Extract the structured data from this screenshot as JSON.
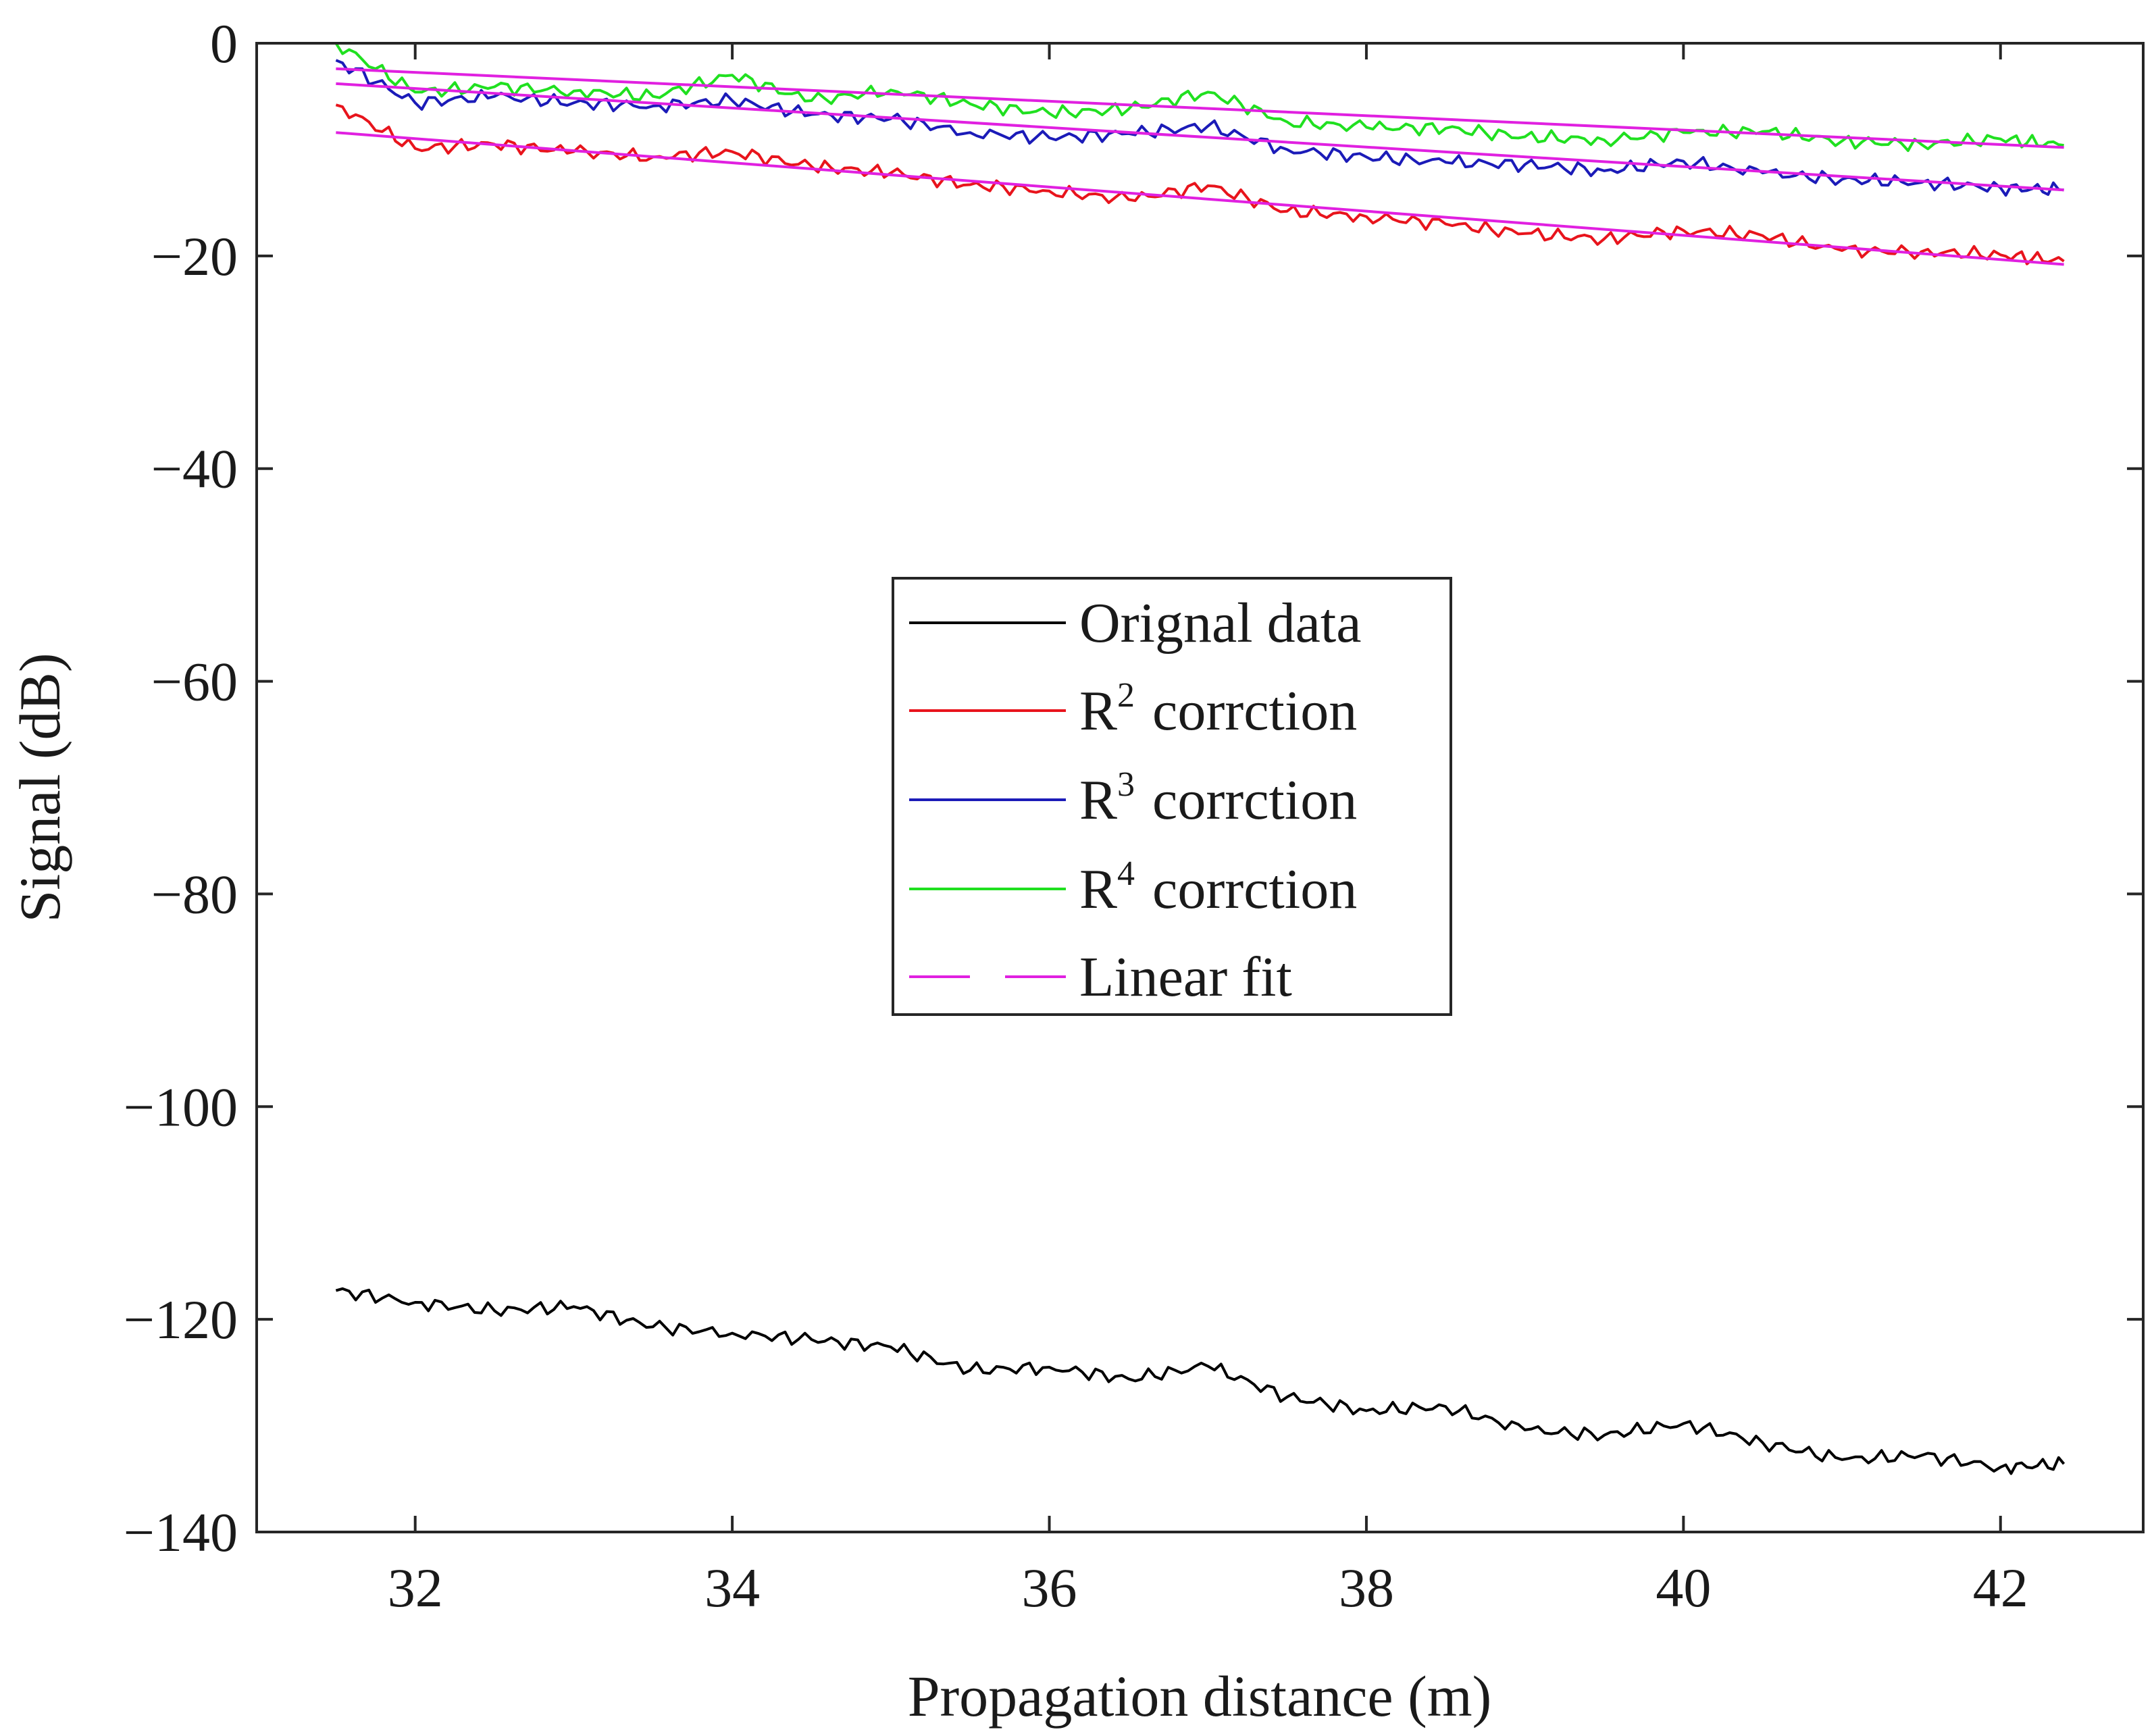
{
  "chart_data": {
    "type": "line",
    "title": "",
    "xlabel": "Propagation distance (m)",
    "ylabel": "Signal (dB)",
    "xlim": [
      31,
      42.9
    ],
    "ylim": [
      -140,
      0
    ],
    "xticks": [
      32,
      34,
      36,
      38,
      40,
      42
    ],
    "yticks": [
      0,
      -20,
      -40,
      -60,
      -80,
      -100,
      -120,
      -140
    ],
    "xtick_labels": [
      "32",
      "34",
      "36",
      "38",
      "40",
      "42"
    ],
    "ytick_labels": [
      "0",
      "−20",
      "−40",
      "−60",
      "−80",
      "−100",
      "−120",
      "−140"
    ],
    "grid": false,
    "legend_position": "center",
    "x": [
      31.5,
      32.0,
      32.5,
      33.0,
      33.5,
      34.0,
      34.5,
      35.0,
      35.5,
      36.0,
      36.5,
      37.0,
      37.5,
      38.0,
      38.5,
      39.0,
      39.5,
      40.0,
      40.5,
      41.0,
      41.5,
      42.0,
      42.4
    ],
    "series": [
      {
        "name": "Orignal data",
        "color": "#000000",
        "values": [
          -117.3,
          -118.4,
          -119.2,
          -118.8,
          -120.7,
          -121.3,
          -121.9,
          -122.6,
          -124.8,
          -124.5,
          -125.6,
          -124.4,
          -127.3,
          -128.6,
          -128.2,
          -130.4,
          -130.9,
          -129.8,
          -131.6,
          -133.2,
          -132.8,
          -133.9,
          -133.6
        ]
      },
      {
        "name": "R2 corrction",
        "label_base": "R",
        "label_sup": "2",
        "label_rest": "corrction",
        "color": "#e8141c",
        "values": [
          -5.8,
          -9.9,
          -9.5,
          -10.2,
          -10.7,
          -10.2,
          -11.6,
          -12.2,
          -13.3,
          -13.9,
          -14.7,
          -13.4,
          -15.8,
          -16.3,
          -17.0,
          -17.9,
          -18.4,
          -17.6,
          -18.1,
          -19.5,
          -19.6,
          -19.9,
          -20.5
        ]
      },
      {
        "name": "R3 corrction",
        "label_base": "R",
        "label_sup": "3",
        "label_rest": "corrction",
        "color": "#1b1bb8",
        "values": [
          -1.6,
          -5.6,
          -5.0,
          -5.6,
          -5.9,
          -5.4,
          -6.7,
          -7.1,
          -8.4,
          -8.9,
          -8.5,
          -7.8,
          -10.0,
          -10.7,
          -11.2,
          -11.4,
          -12.0,
          -11.1,
          -12.2,
          -12.8,
          -13.1,
          -13.6,
          -13.8
        ]
      },
      {
        "name": "R4 corrction",
        "label_base": "R",
        "label_sup": "4",
        "label_rest": "corrction",
        "color": "#20e020",
        "values": [
          0.0,
          -4.6,
          -4.1,
          -4.5,
          -5.0,
          -3.0,
          -5.4,
          -4.4,
          -5.7,
          -6.6,
          -6.2,
          -4.6,
          -7.4,
          -7.9,
          -8.0,
          -8.8,
          -9.1,
          -8.4,
          -8.3,
          -9.2,
          -9.5,
          -9.0,
          -9.6
        ]
      }
    ],
    "linear_fit": {
      "name": "Linear fit",
      "color": "#e020e0",
      "lines": [
        {
          "fits": "R2 corrction",
          "x": [
            31.5,
            42.4
          ],
          "y": [
            -8.4,
            -20.8
          ]
        },
        {
          "fits": "R3 corrction",
          "x": [
            31.5,
            42.4
          ],
          "y": [
            -3.8,
            -13.8
          ]
        },
        {
          "fits": "R4 corrction",
          "x": [
            31.5,
            42.4
          ],
          "y": [
            -2.4,
            -9.8
          ]
        }
      ]
    }
  }
}
